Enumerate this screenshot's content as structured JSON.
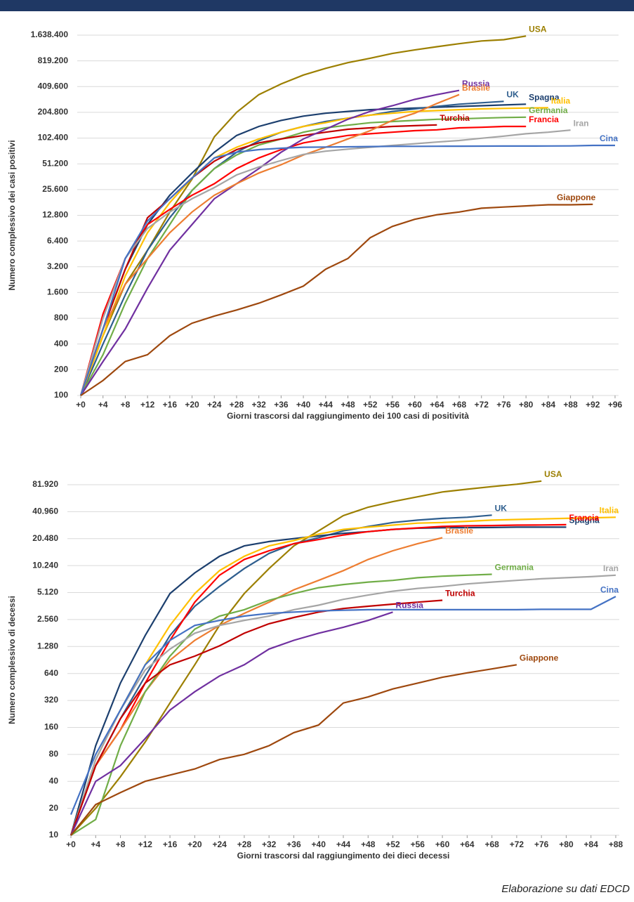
{
  "chart_data": [
    {
      "type": "line",
      "log_y": true,
      "grid": true,
      "x_label": "Giorni trascorsi dal raggiungimento dei 100 casi di positività",
      "y_label": "Numero complessivo dei casi positivi",
      "x": [
        0,
        4,
        8,
        12,
        16,
        20,
        24,
        28,
        32,
        36,
        40,
        44,
        48,
        52,
        56,
        60,
        64,
        68,
        72,
        76,
        80,
        84,
        88,
        92,
        96
      ],
      "xlim": [
        0,
        96
      ],
      "xticks": [
        {
          "value": 0,
          "label": "+0"
        },
        {
          "value": 4,
          "label": "+4"
        },
        {
          "value": 8,
          "label": "+8"
        },
        {
          "value": 12,
          "label": "+12"
        },
        {
          "value": 16,
          "label": "+16"
        },
        {
          "value": 20,
          "label": "+20"
        },
        {
          "value": 24,
          "label": "+24"
        },
        {
          "value": 28,
          "label": "+28"
        },
        {
          "value": 32,
          "label": "+32"
        },
        {
          "value": 36,
          "label": "+36"
        },
        {
          "value": 40,
          "label": "+40"
        },
        {
          "value": 44,
          "label": "+44"
        },
        {
          "value": 48,
          "label": "+48"
        },
        {
          "value": 52,
          "label": "+52"
        },
        {
          "value": 56,
          "label": "+56"
        },
        {
          "value": 60,
          "label": "+60"
        },
        {
          "value": 64,
          "label": "+64"
        },
        {
          "value": 68,
          "label": "+68"
        },
        {
          "value": 72,
          "label": "+72"
        },
        {
          "value": 76,
          "label": "+76"
        },
        {
          "value": 80,
          "label": "+80"
        },
        {
          "value": 84,
          "label": "+84"
        },
        {
          "value": 88,
          "label": "+88"
        },
        {
          "value": 92,
          "label": "+92"
        },
        {
          "value": 96,
          "label": "+96"
        }
      ],
      "ylim": [
        100,
        1638400
      ],
      "yticks": [
        100,
        200,
        400,
        800,
        {
          "value": 1600,
          "label": "1.600"
        },
        {
          "value": 3200,
          "label": "3.200"
        },
        {
          "value": 6400,
          "label": "6.400"
        },
        {
          "value": 12800,
          "label": "12.800"
        },
        {
          "value": 25600,
          "label": "25.600"
        },
        {
          "value": 51200,
          "label": "51.200"
        },
        {
          "value": 102400,
          "label": "102.400"
        },
        {
          "value": 204800,
          "label": "204.800"
        },
        {
          "value": 409600,
          "label": "409.600"
        },
        {
          "value": 819200,
          "label": "819.200"
        },
        {
          "value": 1638400,
          "label": "1.638.400"
        }
      ],
      "series": [
        {
          "name": "USA",
          "color": "#9c7f00",
          "values": [
            100,
            500,
            2000,
            5000,
            14000,
            34000,
            106000,
            205000,
            330000,
            440000,
            560000,
            670000,
            780000,
            880000,
            1000000,
            1100000,
            1200000,
            1300000,
            1400000,
            1450000,
            1600000,
            null,
            null,
            null,
            null
          ]
        },
        {
          "name": "Spagna",
          "color": "#1c3f6e",
          "values": [
            100,
            600,
            3000,
            10000,
            22000,
            40000,
            70000,
            110000,
            140000,
            165000,
            185000,
            200000,
            210000,
            220000,
            225000,
            230000,
            235000,
            240000,
            245000,
            250000,
            255000,
            null,
            null,
            null,
            null
          ]
        },
        {
          "name": "UK",
          "color": "#2e5e8e",
          "values": [
            100,
            400,
            1500,
            5000,
            12000,
            25000,
            45000,
            70000,
            95000,
            120000,
            140000,
            160000,
            175000,
            190000,
            210000,
            225000,
            240000,
            255000,
            265000,
            275000,
            null,
            null,
            null,
            null,
            null
          ]
        },
        {
          "name": "Italia",
          "color": "#ffc000",
          "values": [
            100,
            500,
            2500,
            8000,
            18000,
            35000,
            60000,
            80000,
            100000,
            120000,
            140000,
            155000,
            175000,
            190000,
            200000,
            210000,
            215000,
            220000,
            225000,
            228000,
            230000,
            232000,
            null,
            null,
            null
          ]
        },
        {
          "name": "Germania",
          "color": "#70ad47",
          "values": [
            100,
            300,
            1200,
            4000,
            10000,
            25000,
            45000,
            65000,
            85000,
            100000,
            120000,
            135000,
            145000,
            155000,
            160000,
            165000,
            170000,
            172000,
            175000,
            178000,
            180000,
            null,
            null,
            null,
            null
          ]
        },
        {
          "name": "Francia",
          "color": "#ff0000",
          "values": [
            100,
            900,
            4000,
            10000,
            15000,
            22000,
            30000,
            45000,
            60000,
            75000,
            90000,
            100000,
            110000,
            115000,
            120000,
            125000,
            128000,
            135000,
            137000,
            140000,
            140000,
            null,
            null,
            null,
            null
          ]
        },
        {
          "name": "Turchia",
          "color": "#c00000",
          "values": [
            100,
            600,
            3000,
            12000,
            20000,
            35000,
            55000,
            75000,
            90000,
            100000,
            110000,
            120000,
            130000,
            135000,
            140000,
            143000,
            146000,
            null,
            null,
            null,
            null,
            null,
            null,
            null,
            null
          ]
        },
        {
          "name": "Russia",
          "color": "#7030a0",
          "values": [
            100,
            250,
            600,
            1800,
            5000,
            10000,
            20000,
            30000,
            45000,
            70000,
            100000,
            130000,
            170000,
            210000,
            245000,
            290000,
            330000,
            370000,
            null,
            null,
            null,
            null,
            null,
            null,
            null
          ]
        },
        {
          "name": "Brasile",
          "color": "#ed7d31",
          "values": [
            100,
            600,
            2000,
            4000,
            8000,
            14000,
            22000,
            30000,
            40000,
            50000,
            65000,
            80000,
            100000,
            125000,
            165000,
            200000,
            260000,
            330000,
            null,
            null,
            null,
            null,
            null,
            null,
            null
          ]
        },
        {
          "name": "Iran",
          "color": "#a5a5a5",
          "values": [
            100,
            800,
            4000,
            9000,
            14000,
            20000,
            27000,
            38000,
            47000,
            56000,
            66000,
            72000,
            76000,
            80000,
            84000,
            88000,
            92000,
            96000,
            102000,
            108000,
            115000,
            120000,
            127000,
            null,
            null
          ]
        },
        {
          "name": "Cina",
          "color": "#4472c4",
          "values": [
            100,
            600,
            4000,
            11000,
            20000,
            35000,
            60000,
            70000,
            75000,
            78000,
            80000,
            80500,
            81000,
            81500,
            82000,
            82000,
            82200,
            82400,
            82500,
            82600,
            82700,
            82800,
            82900,
            84000,
            84000
          ]
        },
        {
          "name": "Giappone",
          "color": "#9e480e",
          "values": [
            100,
            150,
            250,
            300,
            500,
            700,
            850,
            1000,
            1200,
            1500,
            1900,
            3000,
            4000,
            7000,
            9500,
            11500,
            13000,
            14000,
            15500,
            16000,
            16500,
            17000,
            17000,
            17200,
            null
          ]
        }
      ]
    },
    {
      "type": "line",
      "log_y": true,
      "grid": true,
      "x_label": "Giorni trascorsi dal raggiungimento dei dieci decessi",
      "y_label": "Numero complessivo di decessi",
      "x": [
        0,
        4,
        8,
        12,
        16,
        20,
        24,
        28,
        32,
        36,
        40,
        44,
        48,
        52,
        56,
        60,
        64,
        68,
        72,
        76,
        80,
        84,
        88
      ],
      "xlim": [
        0,
        88
      ],
      "xticks": [
        {
          "value": 0,
          "label": "+0"
        },
        {
          "value": 4,
          "label": "+4"
        },
        {
          "value": 8,
          "label": "+8"
        },
        {
          "value": 12,
          "label": "+12"
        },
        {
          "value": 16,
          "label": "+16"
        },
        {
          "value": 20,
          "label": "+20"
        },
        {
          "value": 24,
          "label": "+24"
        },
        {
          "value": 28,
          "label": "+28"
        },
        {
          "value": 32,
          "label": "+32"
        },
        {
          "value": 36,
          "label": "+36"
        },
        {
          "value": 40,
          "label": "+40"
        },
        {
          "value": 44,
          "label": "+44"
        },
        {
          "value": 48,
          "label": "+48"
        },
        {
          "value": 52,
          "label": "+52"
        },
        {
          "value": 56,
          "label": "+56"
        },
        {
          "value": 60,
          "label": "+60"
        },
        {
          "value": 64,
          "label": "+64"
        },
        {
          "value": 68,
          "label": "+68"
        },
        {
          "value": 72,
          "label": "+72"
        },
        {
          "value": 76,
          "label": "+76"
        },
        {
          "value": 80,
          "label": "+80"
        },
        {
          "value": 84,
          "label": "+84"
        },
        {
          "value": 88,
          "label": "+88"
        }
      ],
      "ylim": [
        10,
        81920
      ],
      "yticks": [
        10,
        20,
        40,
        80,
        160,
        320,
        640,
        {
          "value": 1280,
          "label": "1.280"
        },
        {
          "value": 2560,
          "label": "2.560"
        },
        {
          "value": 5120,
          "label": "5.120"
        },
        {
          "value": 10240,
          "label": "10.240"
        },
        {
          "value": 20480,
          "label": "20.480"
        },
        {
          "value": 40960,
          "label": "40.960"
        },
        {
          "value": 81920,
          "label": "81.920"
        }
      ],
      "series": [
        {
          "name": "USA",
          "color": "#9c7f00",
          "values": [
            10,
            20,
            45,
            110,
            300,
            800,
            2200,
            5000,
            9500,
            17000,
            25000,
            37000,
            46000,
            53000,
            60000,
            68000,
            73000,
            78000,
            83000,
            90000,
            null,
            null,
            null
          ]
        },
        {
          "name": "UK",
          "color": "#2e5e8e",
          "values": [
            10,
            60,
            200,
            600,
            1700,
            3600,
            6000,
            9500,
            14000,
            18000,
            21000,
            25000,
            28000,
            31000,
            33000,
            34500,
            35500,
            37500,
            null,
            null,
            null,
            null,
            null
          ]
        },
        {
          "name": "Spagna",
          "color": "#1c3f6e",
          "values": [
            10,
            100,
            500,
            1700,
            5000,
            8500,
            13000,
            17000,
            19000,
            20500,
            22000,
            23500,
            24500,
            26000,
            26800,
            27100,
            27200,
            27300,
            27500,
            27500,
            27500,
            null,
            null
          ]
        },
        {
          "name": "Italia",
          "color": "#ffc000",
          "values": [
            10,
            70,
            250,
            800,
            2200,
            5000,
            9000,
            13000,
            17000,
            19500,
            23000,
            26000,
            27500,
            29000,
            30500,
            31000,
            32000,
            33000,
            33500,
            34000,
            34500,
            35000,
            35500
          ]
        },
        {
          "name": "Francia",
          "color": "#ff0000",
          "values": [
            10,
            60,
            150,
            500,
            1500,
            4000,
            8000,
            12000,
            15000,
            18000,
            20000,
            22500,
            24500,
            26000,
            27000,
            28000,
            28500,
            28700,
            29000,
            29100,
            29300,
            null,
            null
          ]
        },
        {
          "name": "Brasile",
          "color": "#ed7d31",
          "values": [
            10,
            60,
            150,
            400,
            900,
            1500,
            2200,
            3000,
            4000,
            5500,
            7000,
            9000,
            12000,
            15000,
            18000,
            21000,
            null,
            null,
            null,
            null,
            null,
            null,
            null
          ]
        },
        {
          "name": "Germania",
          "color": "#70ad47",
          "values": [
            10,
            15,
            100,
            400,
            1000,
            2000,
            2800,
            3300,
            4200,
            5000,
            5800,
            6300,
            6700,
            7000,
            7500,
            7800,
            8000,
            8200,
            null,
            null,
            null,
            null,
            null
          ]
        },
        {
          "name": "Iran",
          "color": "#a5a5a5",
          "values": [
            10,
            70,
            250,
            700,
            1200,
            1800,
            2200,
            2500,
            2800,
            3300,
            3700,
            4300,
            4800,
            5300,
            5700,
            6000,
            6400,
            6700,
            7000,
            7300,
            7500,
            7700,
            8000
          ]
        },
        {
          "name": "Turchia",
          "color": "#c00000",
          "values": [
            10,
            60,
            200,
            500,
            800,
            1000,
            1300,
            1800,
            2300,
            2700,
            3100,
            3400,
            3600,
            3800,
            4000,
            4200,
            null,
            null,
            null,
            null,
            null,
            null,
            null
          ]
        },
        {
          "name": "Russia",
          "color": "#7030a0",
          "values": [
            10,
            40,
            60,
            120,
            250,
            400,
            600,
            800,
            1200,
            1500,
            1800,
            2100,
            2500,
            3100,
            null,
            null,
            null,
            null,
            null,
            null,
            null,
            null,
            null
          ]
        },
        {
          "name": "Cina",
          "color": "#4472c4",
          "values": [
            17,
            80,
            250,
            800,
            1500,
            2200,
            2500,
            2800,
            3000,
            3100,
            3200,
            3250,
            3300,
            3300,
            3300,
            3300,
            3300,
            3300,
            3300,
            3330,
            3330,
            3330,
            4630
          ]
        },
        {
          "name": "Giappone",
          "color": "#9e480e",
          "values": [
            10,
            22,
            30,
            40,
            47,
            55,
            70,
            80,
            100,
            140,
            170,
            300,
            350,
            430,
            500,
            580,
            650,
            720,
            800,
            null,
            null,
            null,
            null
          ]
        }
      ]
    }
  ],
  "footer": "Elaborazione su dati EDCD"
}
